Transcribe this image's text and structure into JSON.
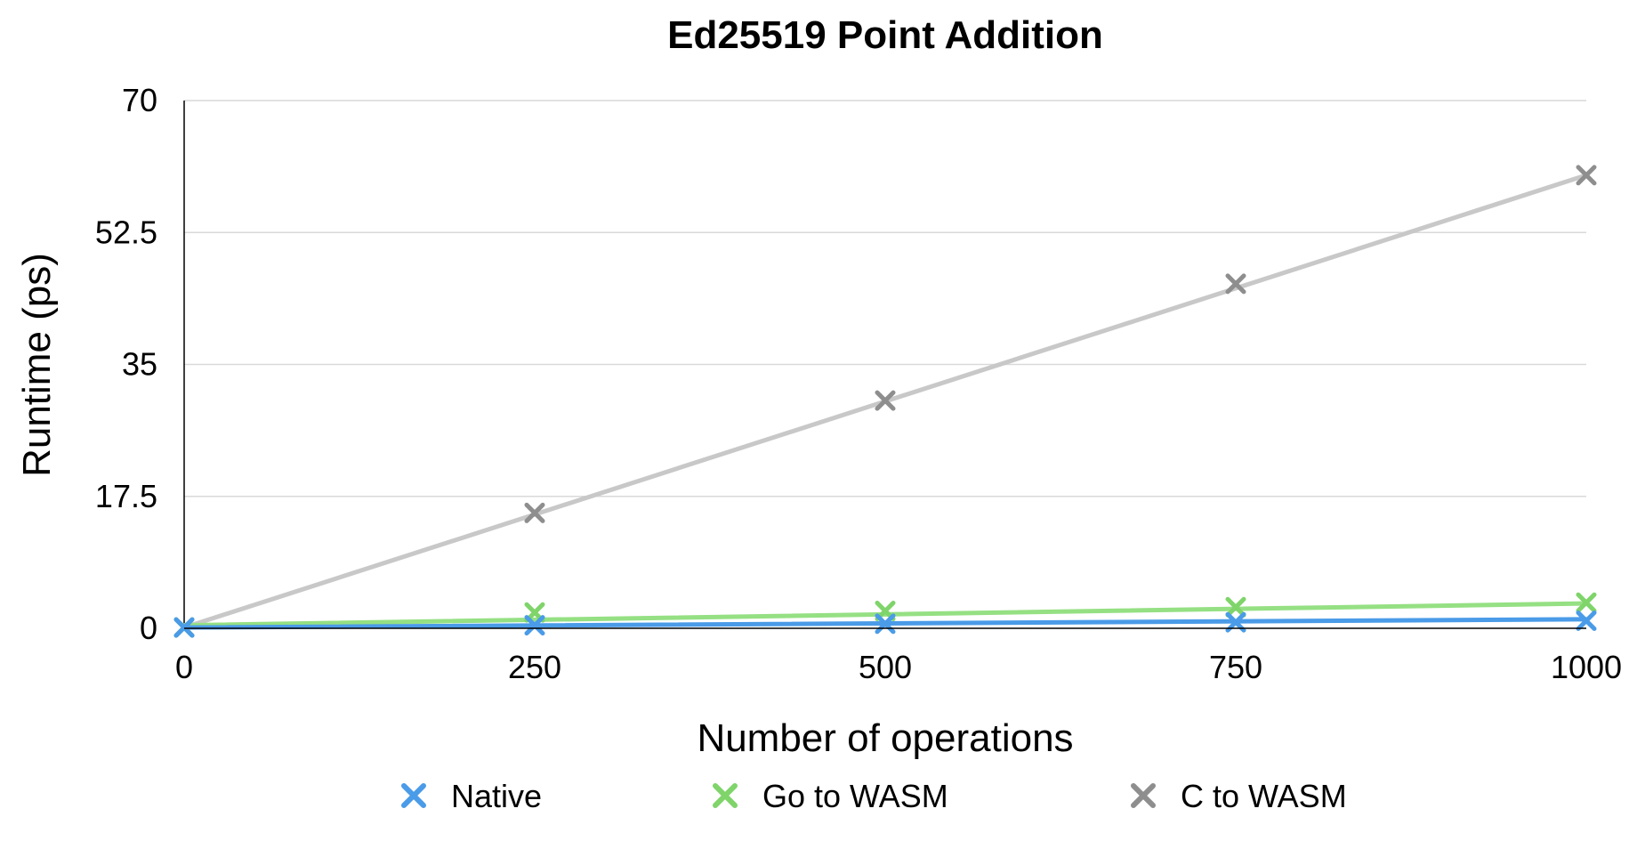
{
  "chart_data": {
    "type": "line",
    "title": "Ed25519 Point Addition",
    "xlabel": "Number of operations",
    "ylabel": "Runtime (ps)",
    "x": [
      0,
      250,
      500,
      750,
      1000
    ],
    "x_tick_labels": [
      "0",
      "250",
      "500",
      "750",
      "1000"
    ],
    "y_tick_values": [
      0,
      17.5,
      35,
      52.5,
      70
    ],
    "y_tick_labels": [
      "0",
      "17.5",
      "35",
      "52.5",
      "70"
    ],
    "xlim": [
      0,
      1000
    ],
    "ylim": [
      0,
      70
    ],
    "grid": "horizontal",
    "legend_position": "bottom",
    "marker": "x",
    "series": [
      {
        "name": "Native",
        "color": "#4a9be8",
        "marker_color": "#4a9be8",
        "values": [
          0.1,
          0.4,
          0.6,
          0.8,
          1.0
        ],
        "trend": [
          0.1,
          1.2
        ]
      },
      {
        "name": "Go to WASM",
        "color": "#95e083",
        "marker_color": "#7fd46a",
        "values": [
          0.1,
          2.1,
          2.3,
          2.8,
          3.4
        ],
        "trend": [
          0.4,
          3.3
        ]
      },
      {
        "name": "C to WASM",
        "color": "#c8c8c8",
        "marker_color": "#8e8e8e",
        "values": [
          0.1,
          15.3,
          30.2,
          45.7,
          60.1
        ],
        "trend": [
          0.1,
          60.1
        ]
      }
    ]
  }
}
